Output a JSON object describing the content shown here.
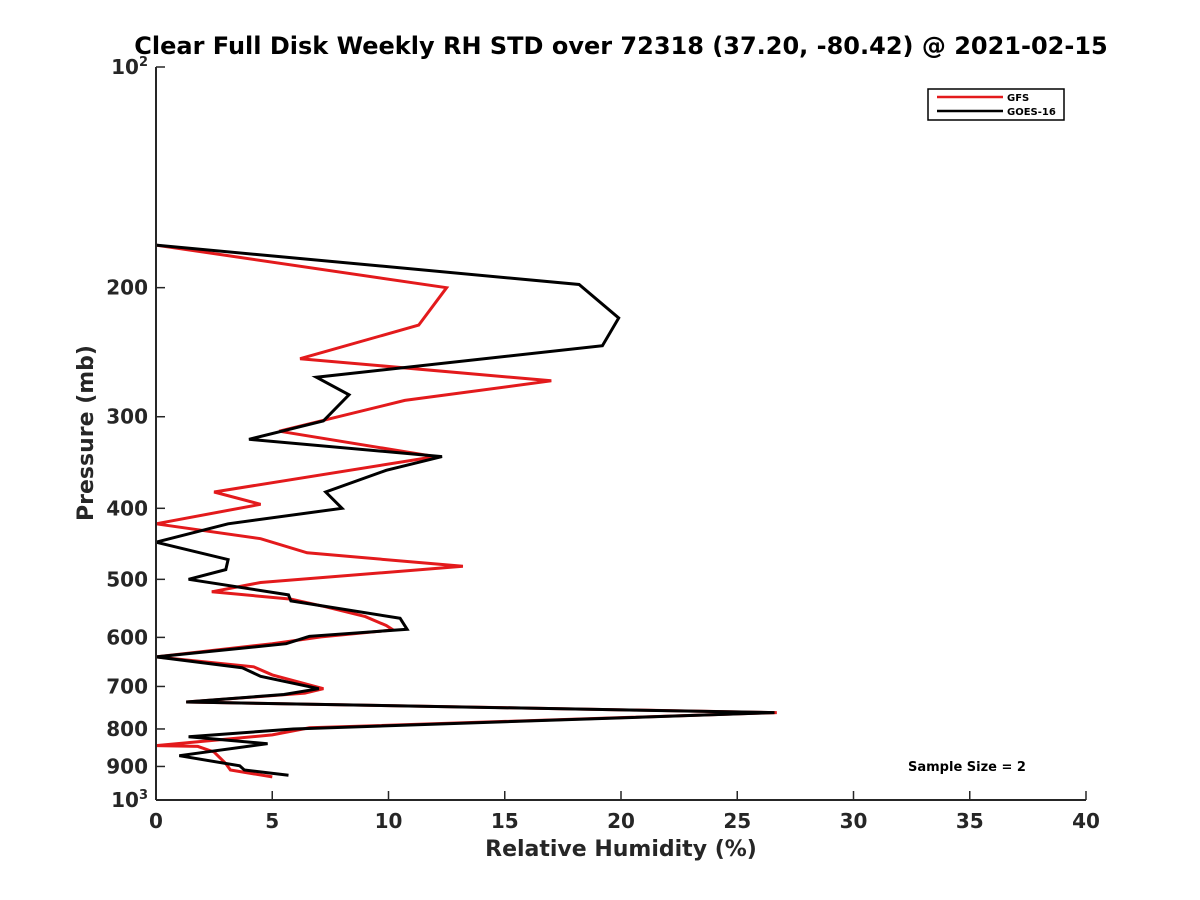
{
  "chart_data": {
    "type": "line",
    "title": "Clear Full Disk Weekly RH STD over 72318 (37.20, -80.42) @ 2021-02-15",
    "xlabel": "Relative Humidity (%)",
    "ylabel": "Pressure (mb)",
    "xlim": [
      0,
      40
    ],
    "ylim": [
      100,
      1000
    ],
    "y_scale": "log",
    "y_reversed": true,
    "grid": false,
    "legend_position": "top-right",
    "x_ticks": [
      0,
      5,
      10,
      15,
      20,
      25,
      30,
      35,
      40
    ],
    "y_ticks": [
      {
        "value": 100,
        "base": "10",
        "exp": "2",
        "label": ""
      },
      {
        "value": 200,
        "label": "200"
      },
      {
        "value": 300,
        "label": "300"
      },
      {
        "value": 400,
        "label": "400"
      },
      {
        "value": 500,
        "label": "500"
      },
      {
        "value": 600,
        "label": "600"
      },
      {
        "value": 700,
        "label": "700"
      },
      {
        "value": 800,
        "label": "800"
      },
      {
        "value": 900,
        "label": "900"
      },
      {
        "value": 1000,
        "base": "10",
        "exp": "3",
        "label": ""
      }
    ],
    "annotation": "Sample Size = 2",
    "series": [
      {
        "name": "GFS",
        "color": "#e31a1c",
        "points": [
          [
            0.0,
            175
          ],
          [
            12.5,
            200
          ],
          [
            11.3,
            225
          ],
          [
            6.2,
            250
          ],
          [
            17.0,
            268
          ],
          [
            10.7,
            285
          ],
          [
            5.3,
            314
          ],
          [
            12.0,
            340
          ],
          [
            2.5,
            380
          ],
          [
            4.5,
            395
          ],
          [
            0.0,
            420
          ],
          [
            4.5,
            440
          ],
          [
            6.5,
            460
          ],
          [
            13.2,
            480
          ],
          [
            4.5,
            505
          ],
          [
            2.4,
            520
          ],
          [
            5.8,
            532
          ],
          [
            7.3,
            545
          ],
          [
            9.0,
            562
          ],
          [
            9.9,
            578
          ],
          [
            10.2,
            586
          ],
          [
            7.1,
            599
          ],
          [
            5.0,
            612
          ],
          [
            0.0,
            638
          ],
          [
            3.1,
            653
          ],
          [
            4.2,
            658
          ],
          [
            5.0,
            675
          ],
          [
            7.2,
            705
          ],
          [
            6.4,
            715
          ],
          [
            1.3,
            735
          ],
          [
            26.7,
            760
          ],
          [
            6.6,
            797
          ],
          [
            5.0,
            815
          ],
          [
            0.0,
            843
          ],
          [
            1.8,
            845
          ],
          [
            2.5,
            860
          ],
          [
            3.0,
            892
          ],
          [
            3.2,
            910
          ],
          [
            5.0,
            930
          ]
        ]
      },
      {
        "name": "GOES-16",
        "color": "#000000",
        "points": [
          [
            0.0,
            175
          ],
          [
            18.2,
            198
          ],
          [
            19.9,
            220
          ],
          [
            19.2,
            240
          ],
          [
            6.9,
            265
          ],
          [
            8.3,
            280
          ],
          [
            7.2,
            304
          ],
          [
            4.0,
            322
          ],
          [
            12.3,
            340
          ],
          [
            9.9,
            355
          ],
          [
            7.3,
            380
          ],
          [
            8.0,
            400
          ],
          [
            3.1,
            420
          ],
          [
            0.0,
            445
          ],
          [
            3.1,
            470
          ],
          [
            3.0,
            485
          ],
          [
            1.4,
            500
          ],
          [
            5.7,
            525
          ],
          [
            5.8,
            535
          ],
          [
            10.5,
            565
          ],
          [
            10.8,
            585
          ],
          [
            6.6,
            598
          ],
          [
            5.6,
            612
          ],
          [
            0.0,
            638
          ],
          [
            3.7,
            660
          ],
          [
            4.5,
            678
          ],
          [
            7.0,
            705
          ],
          [
            5.5,
            718
          ],
          [
            1.3,
            735
          ],
          [
            26.6,
            760
          ],
          [
            5.9,
            800
          ],
          [
            1.4,
            820
          ],
          [
            4.8,
            838
          ],
          [
            1.0,
            870
          ],
          [
            3.6,
            898
          ],
          [
            3.8,
            910
          ],
          [
            5.7,
            925
          ]
        ]
      }
    ]
  }
}
